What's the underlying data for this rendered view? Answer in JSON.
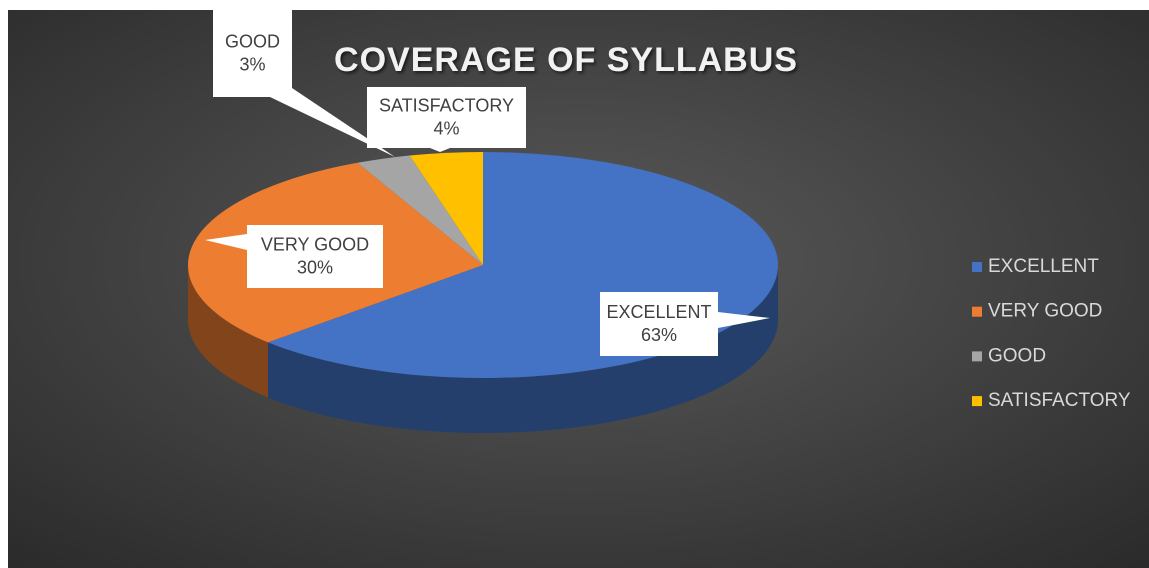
{
  "chart_data": {
    "type": "pie3d",
    "title": "COVERAGE OF SYLLABUS",
    "categories": [
      "EXCELLENT",
      "VERY GOOD",
      "GOOD",
      "SATISFACTORY"
    ],
    "values": [
      63,
      30,
      3,
      4
    ],
    "value_labels": [
      "63%",
      "30%",
      "3%",
      "4%"
    ],
    "colors": [
      "#4472c4",
      "#ed7d31",
      "#a5a5a5",
      "#ffc000"
    ],
    "legend": "right"
  }
}
